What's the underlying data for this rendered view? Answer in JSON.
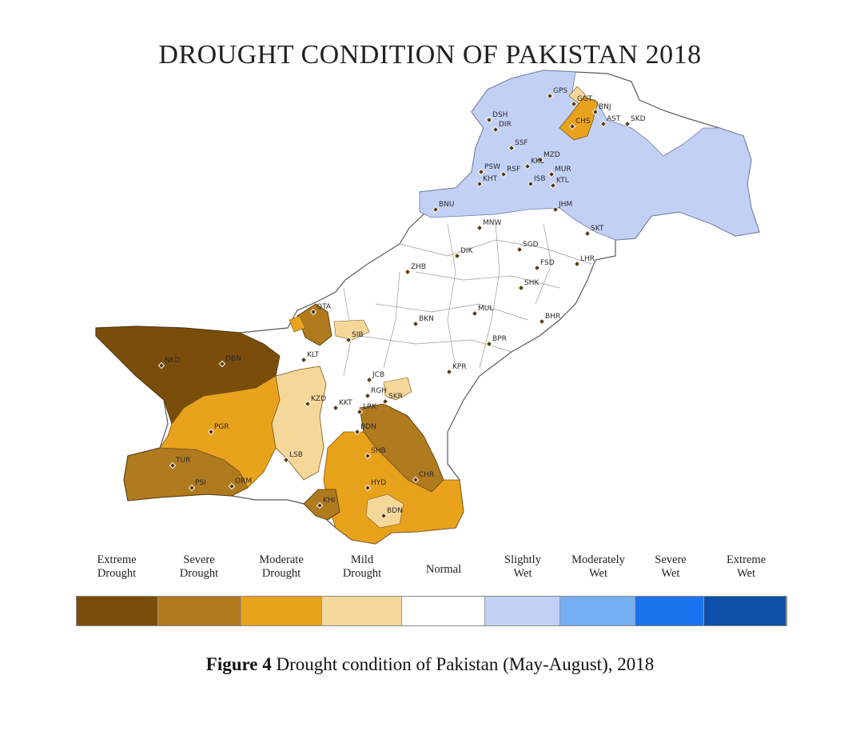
{
  "title": "DROUGHT CONDITION OF PAKISTAN 2018",
  "caption": {
    "label": "Figure 4",
    "text": " Drought condition of Pakistan (May-August), 2018"
  },
  "legend": [
    {
      "label": "Extreme\nDrought",
      "color": "#7a4d0b"
    },
    {
      "label": "Severe\nDrought",
      "color": "#b07a1f"
    },
    {
      "label": "Moderate\nDrought",
      "color": "#e9a21c"
    },
    {
      "label": "Mild\nDrought",
      "color": "#f5d79a"
    },
    {
      "label": "Normal",
      "color": "#ffffff"
    },
    {
      "label": "Slightly\nWet",
      "color": "#c2d0f6"
    },
    {
      "label": "Moderately\nWet",
      "color": "#76aef3"
    },
    {
      "label": "Severe\nWet",
      "color": "#1a73ee"
    },
    {
      "label": "Extreme\nWet",
      "color": "#0d4fa8"
    }
  ],
  "stations": [
    "GPS",
    "GGT",
    "BNJ",
    "CHS",
    "AST",
    "SKD",
    "DSH",
    "DIR",
    "SSF",
    "MZD",
    "PSW",
    "RSF",
    "KKL",
    "MUR",
    "KHT",
    "ISB",
    "KTL",
    "BNU",
    "JHM",
    "MNW",
    "SGD",
    "SKT",
    "ZHB",
    "DIK",
    "FSD",
    "LHR",
    "SHK",
    "QTA",
    "BKN",
    "MUL",
    "BHR",
    "SIB",
    "BPR",
    "KLT",
    "KPR",
    "JCB",
    "KZD",
    "RGH",
    "SKR",
    "KKT",
    "LRK",
    "PGR",
    "BDN",
    "NKD",
    "DBN",
    "LSB",
    "SHB",
    "TUR",
    "CHR",
    "PSI",
    "ORM",
    "HYD",
    "KHI",
    "BDN"
  ]
}
